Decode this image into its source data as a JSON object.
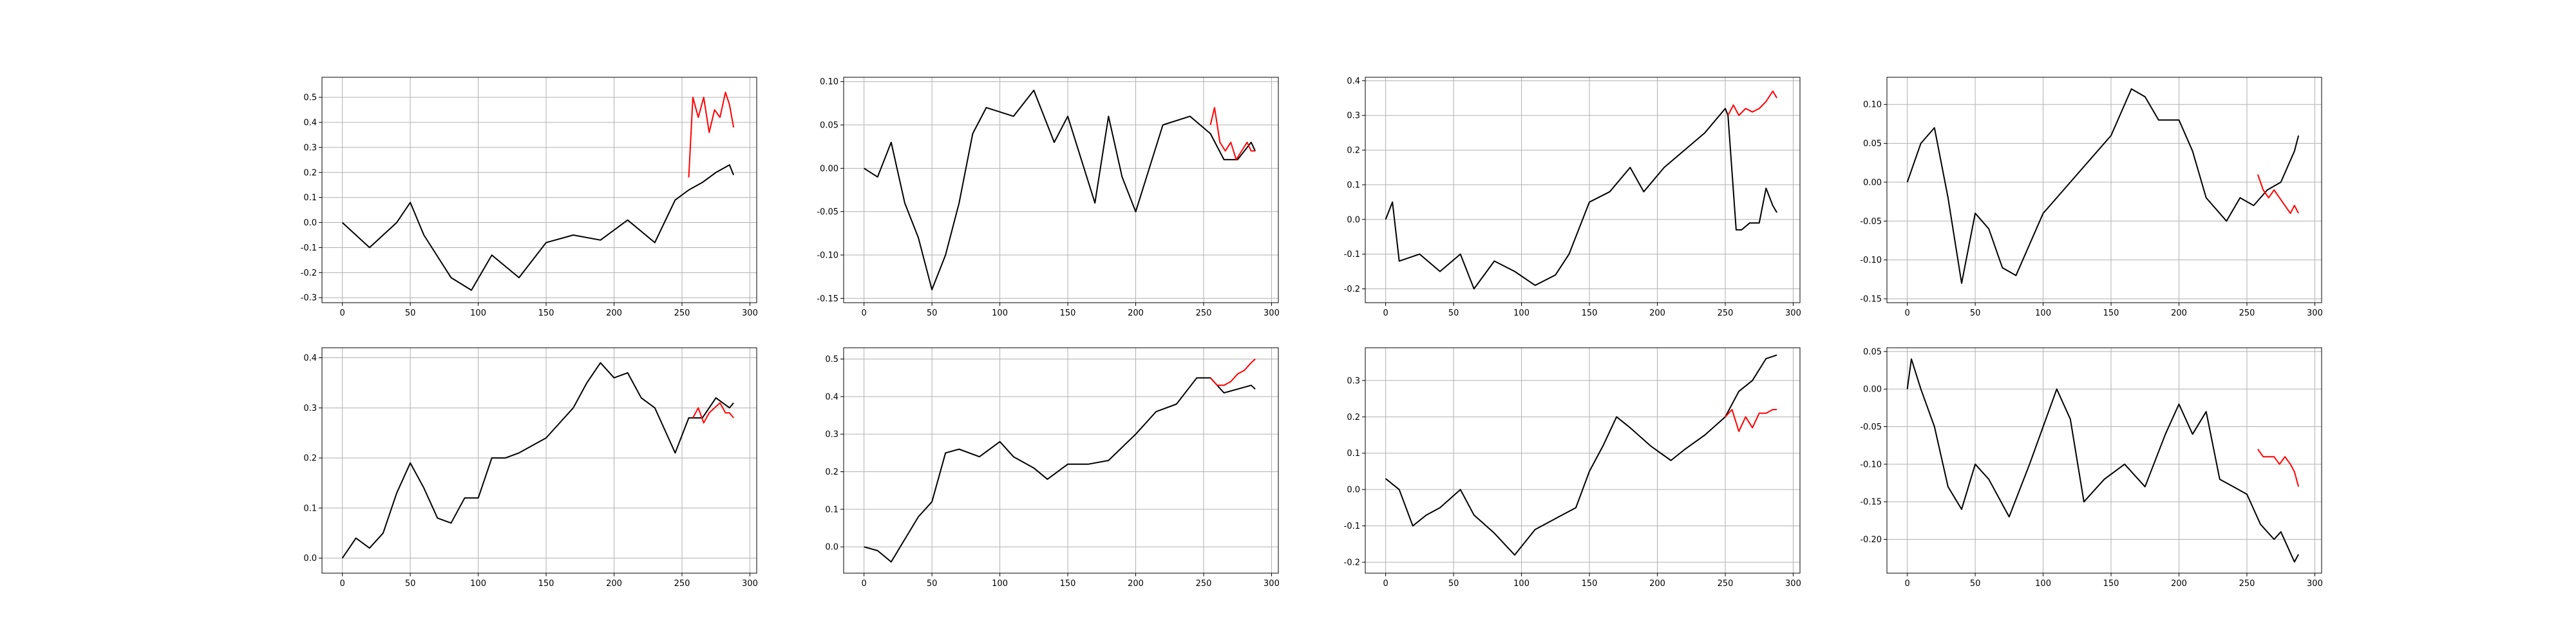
{
  "chart_data": [
    {
      "type": "line",
      "x_ticks": [
        0,
        50,
        100,
        150,
        200,
        250,
        300
      ],
      "y_ticks": [
        -0.3,
        -0.2,
        -0.1,
        0.0,
        0.1,
        0.2,
        0.3,
        0.4,
        0.5
      ],
      "xlim": [
        -15,
        305
      ],
      "ylim": [
        -0.32,
        0.58
      ],
      "grid": true,
      "series": [
        {
          "color": "#000000",
          "x": [
            0,
            20,
            40,
            50,
            60,
            80,
            95,
            110,
            130,
            150,
            170,
            190,
            210,
            230,
            245,
            255,
            265,
            275,
            285,
            288
          ],
          "y": [
            0.0,
            -0.1,
            0.0,
            0.08,
            -0.05,
            -0.22,
            -0.27,
            -0.13,
            -0.22,
            -0.08,
            -0.05,
            -0.07,
            0.01,
            -0.08,
            0.09,
            0.13,
            0.16,
            0.2,
            0.23,
            0.19
          ]
        },
        {
          "color": "#ff0000",
          "x": [
            255,
            258,
            262,
            266,
            270,
            274,
            278,
            282,
            285,
            288
          ],
          "y": [
            0.18,
            0.5,
            0.42,
            0.5,
            0.36,
            0.45,
            0.42,
            0.52,
            0.47,
            0.38
          ]
        }
      ]
    },
    {
      "type": "line",
      "x_ticks": [
        0,
        50,
        100,
        150,
        200,
        250,
        300
      ],
      "y_ticks": [
        -0.15,
        -0.1,
        -0.05,
        0.0,
        0.05,
        0.1
      ],
      "xlim": [
        -15,
        305
      ],
      "ylim": [
        -0.155,
        0.105
      ],
      "grid": true,
      "series": [
        {
          "color": "#000000",
          "x": [
            0,
            10,
            20,
            30,
            40,
            50,
            60,
            70,
            80,
            90,
            110,
            125,
            140,
            150,
            160,
            170,
            180,
            190,
            200,
            220,
            240,
            255,
            265,
            275,
            285,
            288
          ],
          "y": [
            0.0,
            -0.01,
            0.03,
            -0.04,
            -0.08,
            -0.14,
            -0.1,
            -0.04,
            0.04,
            0.07,
            0.06,
            0.09,
            0.03,
            0.06,
            0.01,
            -0.04,
            0.06,
            -0.01,
            -0.05,
            0.05,
            0.06,
            0.04,
            0.01,
            0.01,
            0.03,
            0.02
          ]
        },
        {
          "color": "#ff0000",
          "x": [
            255,
            258,
            262,
            266,
            270,
            274,
            278,
            282,
            285,
            288
          ],
          "y": [
            0.05,
            0.07,
            0.03,
            0.02,
            0.03,
            0.01,
            0.02,
            0.03,
            0.02,
            0.02
          ]
        }
      ]
    },
    {
      "type": "line",
      "x_ticks": [
        0,
        50,
        100,
        150,
        200,
        250,
        300
      ],
      "y_ticks": [
        -0.2,
        -0.1,
        0.0,
        0.1,
        0.2,
        0.3,
        0.4
      ],
      "xlim": [
        -15,
        305
      ],
      "ylim": [
        -0.24,
        0.41
      ],
      "grid": true,
      "series": [
        {
          "color": "#000000",
          "x": [
            0,
            5,
            10,
            25,
            40,
            55,
            65,
            80,
            95,
            110,
            125,
            135,
            150,
            165,
            180,
            190,
            205,
            220,
            235,
            250,
            252,
            258,
            262,
            268,
            275,
            280,
            285,
            288
          ],
          "y": [
            0.0,
            0.05,
            -0.12,
            -0.1,
            -0.15,
            -0.1,
            -0.2,
            -0.12,
            -0.15,
            -0.19,
            -0.16,
            -0.1,
            0.05,
            0.08,
            0.15,
            0.08,
            0.15,
            0.2,
            0.25,
            0.32,
            0.3,
            -0.03,
            -0.03,
            -0.01,
            -0.01,
            0.09,
            0.04,
            0.02
          ]
        },
        {
          "color": "#ff0000",
          "x": [
            252,
            256,
            260,
            265,
            270,
            275,
            280,
            285,
            288
          ],
          "y": [
            0.3,
            0.33,
            0.3,
            0.32,
            0.31,
            0.32,
            0.34,
            0.37,
            0.35
          ]
        }
      ]
    },
    {
      "type": "line",
      "x_ticks": [
        0,
        50,
        100,
        150,
        200,
        250,
        300
      ],
      "y_ticks": [
        -0.15,
        -0.1,
        -0.05,
        0.0,
        0.05,
        0.1
      ],
      "xlim": [
        -15,
        305
      ],
      "ylim": [
        -0.155,
        0.135
      ],
      "grid": true,
      "series": [
        {
          "color": "#000000",
          "x": [
            0,
            10,
            20,
            30,
            40,
            50,
            60,
            70,
            80,
            90,
            100,
            110,
            120,
            135,
            150,
            165,
            175,
            185,
            200,
            210,
            220,
            235,
            245,
            255,
            265,
            275,
            285,
            288
          ],
          "y": [
            0.0,
            0.05,
            0.07,
            -0.02,
            -0.13,
            -0.04,
            -0.06,
            -0.11,
            -0.12,
            -0.08,
            -0.04,
            -0.02,
            0.0,
            0.03,
            0.06,
            0.12,
            0.11,
            0.08,
            0.08,
            0.04,
            -0.02,
            -0.05,
            -0.02,
            -0.03,
            -0.01,
            0.0,
            0.04,
            0.06
          ]
        },
        {
          "color": "#ff0000",
          "x": [
            258,
            262,
            266,
            270,
            274,
            278,
            282,
            285,
            288
          ],
          "y": [
            0.01,
            -0.01,
            -0.02,
            -0.01,
            -0.02,
            -0.03,
            -0.04,
            -0.03,
            -0.04
          ]
        }
      ]
    },
    {
      "type": "line",
      "x_ticks": [
        0,
        50,
        100,
        150,
        200,
        250,
        300
      ],
      "y_ticks": [
        0.0,
        0.1,
        0.2,
        0.3,
        0.4
      ],
      "xlim": [
        -15,
        305
      ],
      "ylim": [
        -0.03,
        0.42
      ],
      "grid": true,
      "series": [
        {
          "color": "#000000",
          "x": [
            0,
            10,
            20,
            30,
            40,
            50,
            60,
            70,
            80,
            90,
            100,
            110,
            120,
            130,
            150,
            170,
            180,
            190,
            200,
            210,
            220,
            230,
            240,
            245,
            255,
            265,
            275,
            285,
            288
          ],
          "y": [
            0.0,
            0.04,
            0.02,
            0.05,
            0.13,
            0.19,
            0.14,
            0.08,
            0.07,
            0.12,
            0.12,
            0.2,
            0.2,
            0.21,
            0.24,
            0.3,
            0.35,
            0.39,
            0.36,
            0.37,
            0.32,
            0.3,
            0.24,
            0.21,
            0.28,
            0.28,
            0.32,
            0.3,
            0.31
          ]
        },
        {
          "color": "#ff0000",
          "x": [
            258,
            262,
            266,
            270,
            274,
            278,
            282,
            285,
            288
          ],
          "y": [
            0.28,
            0.3,
            0.27,
            0.29,
            0.3,
            0.31,
            0.29,
            0.29,
            0.28
          ]
        }
      ]
    },
    {
      "type": "line",
      "x_ticks": [
        0,
        50,
        100,
        150,
        200,
        250,
        300
      ],
      "y_ticks": [
        0.0,
        0.1,
        0.2,
        0.3,
        0.4,
        0.5
      ],
      "xlim": [
        -15,
        305
      ],
      "ylim": [
        -0.07,
        0.53
      ],
      "grid": true,
      "series": [
        {
          "color": "#000000",
          "x": [
            0,
            10,
            20,
            30,
            40,
            50,
            60,
            70,
            85,
            100,
            110,
            125,
            135,
            150,
            165,
            180,
            200,
            215,
            230,
            245,
            255,
            265,
            275,
            285,
            288
          ],
          "y": [
            0.0,
            -0.01,
            -0.04,
            0.02,
            0.08,
            0.12,
            0.25,
            0.26,
            0.24,
            0.28,
            0.24,
            0.21,
            0.18,
            0.22,
            0.22,
            0.23,
            0.3,
            0.36,
            0.38,
            0.45,
            0.45,
            0.41,
            0.42,
            0.43,
            0.42
          ]
        },
        {
          "color": "#ff0000",
          "x": [
            255,
            260,
            265,
            270,
            275,
            280,
            285,
            288
          ],
          "y": [
            0.45,
            0.43,
            0.43,
            0.44,
            0.46,
            0.47,
            0.49,
            0.5
          ]
        }
      ]
    },
    {
      "type": "line",
      "x_ticks": [
        0,
        50,
        100,
        150,
        200,
        250,
        300
      ],
      "y_ticks": [
        -0.2,
        -0.1,
        0.0,
        0.1,
        0.2,
        0.3
      ],
      "xlim": [
        -15,
        305
      ],
      "ylim": [
        -0.23,
        0.39
      ],
      "grid": true,
      "series": [
        {
          "color": "#000000",
          "x": [
            0,
            10,
            20,
            30,
            40,
            55,
            65,
            80,
            95,
            110,
            125,
            140,
            150,
            160,
            170,
            180,
            195,
            210,
            220,
            235,
            250,
            260,
            270,
            280,
            288
          ],
          "y": [
            0.03,
            0.0,
            -0.1,
            -0.07,
            -0.05,
            0.0,
            -0.07,
            -0.12,
            -0.18,
            -0.11,
            -0.08,
            -0.05,
            0.05,
            0.12,
            0.2,
            0.17,
            0.12,
            0.08,
            0.11,
            0.15,
            0.2,
            0.27,
            0.3,
            0.36,
            0.37
          ]
        },
        {
          "color": "#ff0000",
          "x": [
            250,
            255,
            260,
            265,
            270,
            275,
            280,
            285,
            288
          ],
          "y": [
            0.2,
            0.22,
            0.16,
            0.2,
            0.17,
            0.21,
            0.21,
            0.22,
            0.22
          ]
        }
      ]
    },
    {
      "type": "line",
      "x_ticks": [
        0,
        50,
        100,
        150,
        200,
        250,
        300
      ],
      "y_ticks": [
        -0.2,
        -0.15,
        -0.1,
        -0.05,
        0.0,
        0.05
      ],
      "xlim": [
        -15,
        305
      ],
      "ylim": [
        -0.245,
        0.055
      ],
      "grid": true,
      "series": [
        {
          "color": "#000000",
          "x": [
            0,
            3,
            10,
            20,
            30,
            40,
            50,
            60,
            75,
            90,
            100,
            110,
            120,
            130,
            145,
            160,
            175,
            190,
            200,
            210,
            220,
            230,
            240,
            250,
            260,
            270,
            275,
            280,
            285,
            288
          ],
          "y": [
            0.0,
            0.04,
            0.0,
            -0.05,
            -0.13,
            -0.16,
            -0.1,
            -0.12,
            -0.17,
            -0.1,
            -0.05,
            0.0,
            -0.04,
            -0.15,
            -0.12,
            -0.1,
            -0.13,
            -0.06,
            -0.02,
            -0.06,
            -0.03,
            -0.12,
            -0.13,
            -0.14,
            -0.18,
            -0.2,
            -0.19,
            -0.21,
            -0.23,
            -0.22
          ]
        },
        {
          "color": "#ff0000",
          "x": [
            258,
            262,
            266,
            270,
            274,
            278,
            282,
            285,
            288
          ],
          "y": [
            -0.08,
            -0.09,
            -0.09,
            -0.09,
            -0.1,
            -0.09,
            -0.1,
            -0.11,
            -0.13
          ]
        }
      ]
    }
  ]
}
